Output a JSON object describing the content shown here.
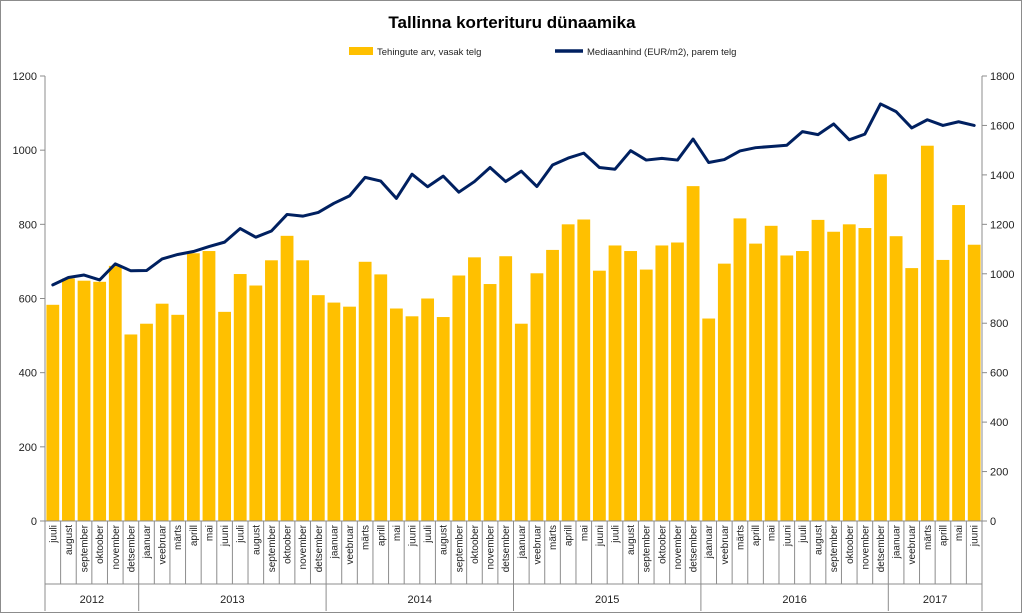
{
  "chart_data": {
    "type": "bar",
    "title": "Tallinna korterituru dünaamika",
    "legend_position": "top-center",
    "grid": false,
    "y_left_lim": [
      0,
      1200
    ],
    "y_left_ticks": [
      "0",
      "200",
      "400",
      "600",
      "800",
      "1000",
      "1200"
    ],
    "y_right_lim": [
      0,
      1800
    ],
    "y_right_ticks": [
      "0",
      "200",
      "400",
      "600",
      "800",
      "1000",
      "1200",
      "1400",
      "1600",
      "1800"
    ],
    "categories": [
      "juuli",
      "august",
      "september",
      "oktoober",
      "november",
      "detsember",
      "jaanuar",
      "veebruar",
      "märts",
      "aprill",
      "mai",
      "juuni",
      "juuli",
      "august",
      "september",
      "oktoober",
      "november",
      "detsember",
      "jaanuar",
      "veebruar",
      "märts",
      "aprill",
      "mai",
      "juuni",
      "juuli",
      "august",
      "september",
      "oktoober",
      "november",
      "detsember",
      "jaanuar",
      "veebruar",
      "märts",
      "aprill",
      "mai",
      "juuni",
      "juuli",
      "august",
      "september",
      "oktoober",
      "november",
      "detsember",
      "jaanuar",
      "veebruar",
      "märts",
      "aprill",
      "mai",
      "juuni",
      "juuli",
      "august",
      "september",
      "oktoober",
      "november",
      "detsember",
      "jaanuar",
      "veebruar",
      "märts",
      "aprill",
      "mai",
      "juuni"
    ],
    "years": [
      {
        "label": "2012",
        "start": 0,
        "count": 6
      },
      {
        "label": "2013",
        "start": 6,
        "count": 12
      },
      {
        "label": "2014",
        "start": 18,
        "count": 12
      },
      {
        "label": "2015",
        "start": 30,
        "count": 12
      },
      {
        "label": "2016",
        "start": 42,
        "count": 12
      },
      {
        "label": "2017",
        "start": 54,
        "count": 6
      }
    ],
    "series": [
      {
        "name": "Tehingute arv, vasak telg",
        "type": "bar",
        "axis": "left",
        "color": "#FFC000",
        "values": [
          583,
          654,
          648,
          645,
          688,
          503,
          532,
          586,
          556,
          722,
          728,
          564,
          666,
          635,
          703,
          769,
          703,
          609,
          589,
          578,
          699,
          665,
          573,
          552,
          600,
          550,
          662,
          711,
          639,
          714,
          532,
          668,
          731,
          800,
          813,
          675,
          743,
          728,
          678,
          743,
          751,
          903,
          546,
          694,
          816,
          748,
          796,
          716,
          728,
          812,
          780,
          800,
          790,
          935,
          768,
          682,
          1012,
          704,
          852,
          745
        ]
      },
      {
        "name": "Mediaanhind (EUR/m2), parem telg",
        "type": "line",
        "axis": "right",
        "color": "#002060",
        "values": [
          955,
          985,
          995,
          975,
          1040,
          1012,
          1013,
          1060,
          1078,
          1090,
          1110,
          1128,
          1183,
          1148,
          1173,
          1240,
          1233,
          1248,
          1285,
          1315,
          1390,
          1375,
          1305,
          1403,
          1352,
          1395,
          1330,
          1373,
          1430,
          1373,
          1415,
          1353,
          1440,
          1468,
          1488,
          1430,
          1423,
          1498,
          1460,
          1467,
          1460,
          1545,
          1450,
          1462,
          1497,
          1510,
          1515,
          1520,
          1575,
          1563,
          1606,
          1542,
          1565,
          1687,
          1656,
          1590,
          1623,
          1600,
          1615,
          1600
        ]
      }
    ]
  }
}
